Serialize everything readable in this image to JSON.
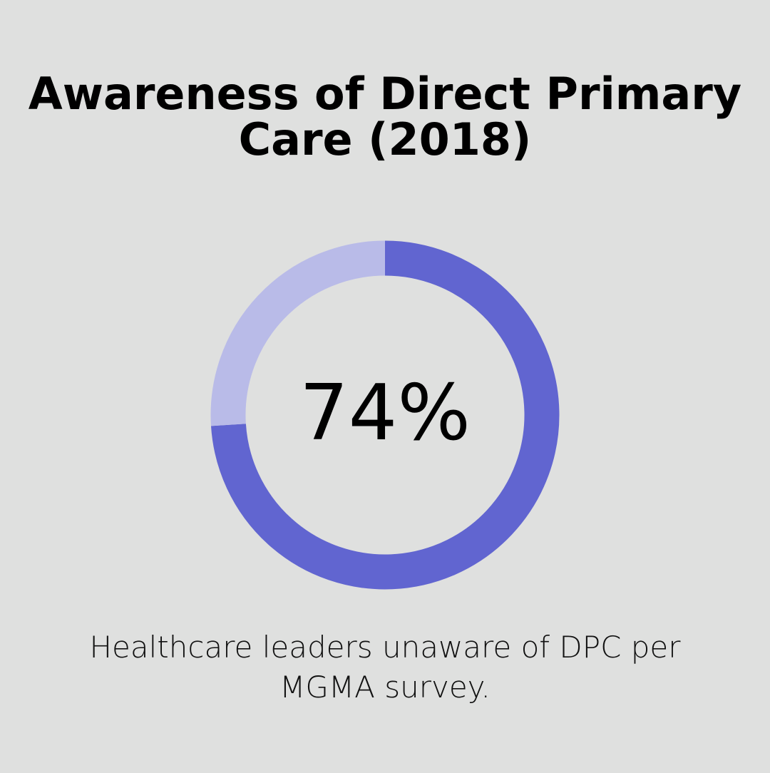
{
  "chart_data": {
    "type": "pie",
    "title": "Awareness of Direct Primary Care (2018)",
    "values": [
      74,
      26
    ],
    "center_label": "74%",
    "caption": "Healthcare leaders unaware of DPC per MGMA survey.",
    "colors": [
      "#6165d0",
      "#b9bbe8"
    ]
  }
}
